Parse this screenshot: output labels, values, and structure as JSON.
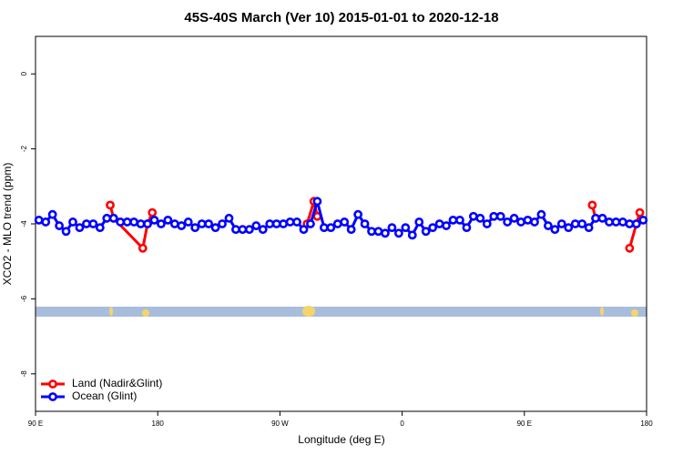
{
  "chart_data": {
    "type": "line",
    "title": "45S-40S March (Ver 10)   2015-01-01 to 2020-12-18",
    "x_label": "Longitude (deg E)",
    "y_label": "XCO2 - MLO trend (ppm)",
    "xlim": [
      90,
      540
    ],
    "xticks": [
      {
        "value": 90,
        "label": "90 E"
      },
      {
        "value": 180,
        "label": "180"
      },
      {
        "value": 270,
        "label": "90 W"
      },
      {
        "value": 360,
        "label": "0"
      },
      {
        "value": 450,
        "label": "90 E"
      },
      {
        "value": 540,
        "label": "180"
      }
    ],
    "ylim": [
      -9,
      1
    ],
    "yticks": [
      0,
      -2,
      -4,
      -6,
      -8
    ],
    "legend": "bottom-left",
    "series": [
      {
        "name": "Land (Nadir&Glint)",
        "color": "#ff0000",
        "x": [
          145,
          147.5,
          169,
          172.5,
          176,
          null,
          290,
          295,
          297.5,
          null,
          500,
          502.5,
          null,
          527.5,
          532.5,
          535
        ],
        "values": [
          -3.5,
          -3.85,
          -4.65,
          -4.0,
          -3.7,
          null,
          -4.0,
          -3.4,
          -3.8,
          null,
          -3.5,
          -3.85,
          null,
          -4.65,
          -4.0,
          -3.7
        ]
      },
      {
        "name": "Ocean (Glint)",
        "color": "#0000ff",
        "x": [
          92.5,
          97.5,
          102.5,
          107.5,
          112.5,
          117.5,
          122.5,
          127.5,
          132.5,
          137.5,
          142.5,
          147.5,
          152.5,
          157.5,
          162.5,
          167.5,
          172.5,
          177.5,
          182.5,
          187.5,
          192.5,
          197.5,
          202.5,
          207.5,
          212.5,
          217.5,
          222.5,
          227.5,
          232.5,
          237.5,
          242.5,
          247.5,
          252.5,
          257.5,
          262.5,
          267.5,
          272.5,
          277.5,
          282.5,
          287.5,
          292.5,
          297.5,
          302.5,
          307.5,
          312.5,
          317.5,
          322.5,
          327.5,
          332.5,
          337.5,
          342.5,
          347.5,
          352.5,
          357.5,
          362.5,
          367.5,
          372.5,
          377.5,
          382.5,
          387.5,
          392.5,
          397.5,
          402.5,
          407.5,
          412.5,
          417.5,
          422.5,
          427.5,
          432.5,
          437.5,
          442.5,
          447.5,
          452.5,
          457.5,
          462.5,
          467.5,
          472.5,
          477.5,
          482.5,
          487.5,
          492.5,
          497.5,
          502.5,
          507.5,
          512.5,
          517.5,
          522.5,
          527.5,
          532.5,
          537.5
        ],
        "values": [
          -3.9,
          -3.95,
          -3.75,
          -4.05,
          -4.2,
          -3.95,
          -4.1,
          -4.0,
          -4.0,
          -4.1,
          -3.85,
          -3.85,
          -3.95,
          -3.95,
          -3.95,
          -4.0,
          -4.0,
          -3.9,
          -4.0,
          -3.9,
          -4.0,
          -4.05,
          -3.95,
          -4.1,
          -4.0,
          -4.0,
          -4.1,
          -4.0,
          -3.85,
          -4.15,
          -4.15,
          -4.15,
          -4.05,
          -4.15,
          -4.0,
          -4.0,
          -4.0,
          -3.95,
          -3.95,
          -4.15,
          -4.0,
          -3.4,
          -4.1,
          -4.1,
          -4.0,
          -3.95,
          -4.15,
          -3.75,
          -4.0,
          -4.2,
          -4.2,
          -4.25,
          -4.1,
          -4.25,
          -4.1,
          -4.3,
          -3.95,
          -4.2,
          -4.1,
          -4.0,
          -4.05,
          -3.9,
          -3.9,
          -4.1,
          -3.8,
          -3.85,
          -4.0,
          -3.8,
          -3.8,
          -3.95,
          -3.85,
          -3.95,
          -3.9,
          -3.95,
          -3.75,
          -4.05,
          -4.15,
          -4.0,
          -4.1,
          -4.0,
          -4.0,
          -4.1,
          -3.85,
          -3.85,
          -3.95,
          -3.95,
          -3.95,
          -4.0,
          -4.0,
          -3.9
        ]
      }
    ]
  }
}
